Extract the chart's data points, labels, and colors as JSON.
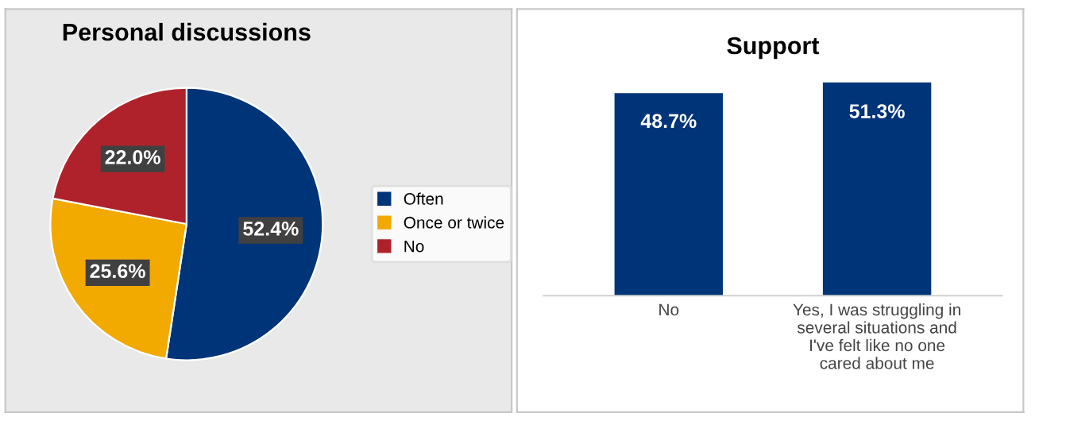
{
  "chart_data": [
    {
      "type": "pie",
      "title": "Personal discussions",
      "categories": [
        "Often",
        "Once or twice",
        "No"
      ],
      "values": [
        52.4,
        25.6,
        22.0
      ],
      "colors": [
        "#003478",
        "#f2a900",
        "#b0222b"
      ],
      "value_labels": [
        "52.4%",
        "25.6%",
        "22.0%"
      ],
      "legend": "right"
    },
    {
      "type": "bar",
      "title": "Support",
      "categories": [
        "No",
        "Yes, I was struggling in several situations and I've felt like no one cared about me"
      ],
      "values": [
        48.7,
        51.3
      ],
      "color": "#003478",
      "value_labels": [
        "48.7%",
        "51.3%"
      ],
      "tick_labels": "x"
    }
  ]
}
